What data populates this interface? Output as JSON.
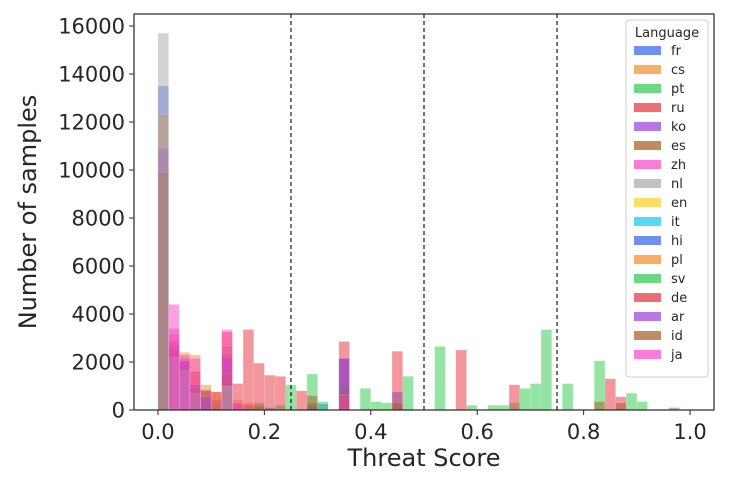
{
  "chart_data": {
    "type": "bar",
    "subtype": "overlaid-histogram",
    "title": "",
    "xlabel": "Threat Score",
    "ylabel": "Number of samples",
    "xlim": [
      -0.045,
      1.045
    ],
    "ylim": [
      0,
      16500
    ],
    "xticks": [
      0.0,
      0.2,
      0.4,
      0.6,
      0.8,
      1.0
    ],
    "xtick_labels": [
      "0.0",
      "0.2",
      "0.4",
      "0.6",
      "0.8",
      "1.0"
    ],
    "yticks": [
      0,
      2000,
      4000,
      6000,
      8000,
      10000,
      12000,
      14000,
      16000
    ],
    "ytick_labels": [
      "0",
      "2000",
      "4000",
      "6000",
      "8000",
      "10000",
      "12000",
      "14000",
      "16000"
    ],
    "grid": false,
    "bin_width": 0.02,
    "bar_opacity": 0.5,
    "vlines": [
      0.25,
      0.5,
      0.75
    ],
    "vline_style": "dashed",
    "legend": {
      "title": "Language",
      "placement": "top-right",
      "entries": [
        "fr",
        "cs",
        "pt",
        "ru",
        "ko",
        "es",
        "zh",
        "nl",
        "en",
        "it",
        "hi",
        "pl",
        "sv",
        "de",
        "ar",
        "id",
        "ja"
      ]
    },
    "series": [
      {
        "name": "fr",
        "color": "#2f5ff2",
        "values": [
          {
            "x": 0.0,
            "y": 13500
          },
          {
            "x": 0.02,
            "y": 2700
          },
          {
            "x": 0.04,
            "y": 2150
          },
          {
            "x": 0.06,
            "y": 1050
          },
          {
            "x": 0.08,
            "y": 850
          },
          {
            "x": 0.1,
            "y": 400
          },
          {
            "x": 0.12,
            "y": 2300
          },
          {
            "x": 0.14,
            "y": 250
          },
          {
            "x": 0.16,
            "y": 200
          },
          {
            "x": 0.18,
            "y": 150
          },
          {
            "x": 0.2,
            "y": 100
          },
          {
            "x": 0.28,
            "y": 250
          },
          {
            "x": 0.3,
            "y": 250
          },
          {
            "x": 0.34,
            "y": 2150
          },
          {
            "x": 0.44,
            "y": 750
          }
        ]
      },
      {
        "name": "cs",
        "color": "#f58b2a",
        "values": [
          {
            "x": 0.0,
            "y": 12300
          },
          {
            "x": 0.02,
            "y": 3150
          },
          {
            "x": 0.04,
            "y": 2400
          },
          {
            "x": 0.06,
            "y": 2300
          },
          {
            "x": 0.08,
            "y": 1050
          },
          {
            "x": 0.1,
            "y": 750
          },
          {
            "x": 0.12,
            "y": 2650
          },
          {
            "x": 0.14,
            "y": 400
          },
          {
            "x": 0.16,
            "y": 300
          },
          {
            "x": 0.18,
            "y": 200
          },
          {
            "x": 0.28,
            "y": 300
          },
          {
            "x": 0.34,
            "y": 700
          }
        ]
      },
      {
        "name": "pt",
        "color": "#2ec94a",
        "values": [
          {
            "x": 0.04,
            "y": 1800
          },
          {
            "x": 0.12,
            "y": 1300
          },
          {
            "x": 0.18,
            "y": 300
          },
          {
            "x": 0.22,
            "y": 200
          },
          {
            "x": 0.24,
            "y": 1050
          },
          {
            "x": 0.28,
            "y": 1500
          },
          {
            "x": 0.3,
            "y": 350
          },
          {
            "x": 0.34,
            "y": 1050
          },
          {
            "x": 0.38,
            "y": 900
          },
          {
            "x": 0.4,
            "y": 350
          },
          {
            "x": 0.42,
            "y": 300
          },
          {
            "x": 0.46,
            "y": 1400
          },
          {
            "x": 0.52,
            "y": 2650
          },
          {
            "x": 0.58,
            "y": 200
          },
          {
            "x": 0.62,
            "y": 200
          },
          {
            "x": 0.64,
            "y": 200
          },
          {
            "x": 0.66,
            "y": 300
          },
          {
            "x": 0.68,
            "y": 900
          },
          {
            "x": 0.7,
            "y": 1100
          },
          {
            "x": 0.72,
            "y": 3350
          },
          {
            "x": 0.76,
            "y": 1100
          },
          {
            "x": 0.82,
            "y": 2050
          },
          {
            "x": 0.88,
            "y": 700
          },
          {
            "x": 0.9,
            "y": 350
          }
        ]
      },
      {
        "name": "ru",
        "color": "#e8303a",
        "values": [
          {
            "x": 0.02,
            "y": 2850
          },
          {
            "x": 0.04,
            "y": 2050
          },
          {
            "x": 0.06,
            "y": 1600
          },
          {
            "x": 0.08,
            "y": 800
          },
          {
            "x": 0.1,
            "y": 750
          },
          {
            "x": 0.12,
            "y": 3250
          },
          {
            "x": 0.14,
            "y": 1100
          },
          {
            "x": 0.16,
            "y": 3350
          },
          {
            "x": 0.18,
            "y": 1950
          },
          {
            "x": 0.2,
            "y": 1450
          },
          {
            "x": 0.22,
            "y": 1400
          },
          {
            "x": 0.26,
            "y": 800
          },
          {
            "x": 0.34,
            "y": 2850
          },
          {
            "x": 0.44,
            "y": 2450
          },
          {
            "x": 0.56,
            "y": 2500
          },
          {
            "x": 0.66,
            "y": 1050
          },
          {
            "x": 0.84,
            "y": 1300
          },
          {
            "x": 0.86,
            "y": 550
          }
        ]
      },
      {
        "name": "ko",
        "color": "#9b3ddb",
        "values": [
          {
            "x": 0.0,
            "y": 10900
          },
          {
            "x": 0.02,
            "y": 2600
          },
          {
            "x": 0.04,
            "y": 2050
          },
          {
            "x": 0.06,
            "y": 1050
          },
          {
            "x": 0.08,
            "y": 550
          },
          {
            "x": 0.12,
            "y": 2200
          },
          {
            "x": 0.28,
            "y": 150
          },
          {
            "x": 0.34,
            "y": 2150
          }
        ]
      },
      {
        "name": "es",
        "color": "#a65a22",
        "values": [
          {
            "x": 0.0,
            "y": 9900
          },
          {
            "x": 0.02,
            "y": 2500
          },
          {
            "x": 0.06,
            "y": 950
          },
          {
            "x": 0.12,
            "y": 1500
          },
          {
            "x": 0.28,
            "y": 600
          },
          {
            "x": 0.34,
            "y": 650
          },
          {
            "x": 0.44,
            "y": 300
          },
          {
            "x": 0.82,
            "y": 350
          },
          {
            "x": 0.86,
            "y": 300
          },
          {
            "x": 0.96,
            "y": 100
          }
        ]
      },
      {
        "name": "zh",
        "color": "#f545c7",
        "values": [
          {
            "x": 0.02,
            "y": 3400
          },
          {
            "x": 0.12,
            "y": 3350
          },
          {
            "x": 0.34,
            "y": 600
          }
        ]
      },
      {
        "name": "nl",
        "color": "#a8a8a8",
        "values": [
          {
            "x": 0.0,
            "y": 15700
          },
          {
            "x": 0.02,
            "y": 2200
          },
          {
            "x": 0.04,
            "y": 1650
          },
          {
            "x": 0.06,
            "y": 700
          },
          {
            "x": 0.12,
            "y": 1000
          }
        ]
      },
      {
        "name": "en",
        "color": "#ffcf1f",
        "values": []
      },
      {
        "name": "it",
        "color": "#12c8f0",
        "values": []
      },
      {
        "name": "hi",
        "color": "#2f5ff2",
        "values": []
      },
      {
        "name": "pl",
        "color": "#f58b2a",
        "values": []
      },
      {
        "name": "sv",
        "color": "#2ec94a",
        "values": []
      },
      {
        "name": "de",
        "color": "#e8303a",
        "values": []
      },
      {
        "name": "ar",
        "color": "#9b3ddb",
        "values": []
      },
      {
        "name": "id",
        "color": "#a65a22",
        "values": []
      },
      {
        "name": "ja",
        "color": "#f545c7",
        "values": [
          {
            "x": 0.02,
            "y": 4400
          },
          {
            "x": 0.04,
            "y": 2300
          },
          {
            "x": 0.06,
            "y": 2150
          },
          {
            "x": 0.14,
            "y": 300
          }
        ]
      }
    ]
  }
}
